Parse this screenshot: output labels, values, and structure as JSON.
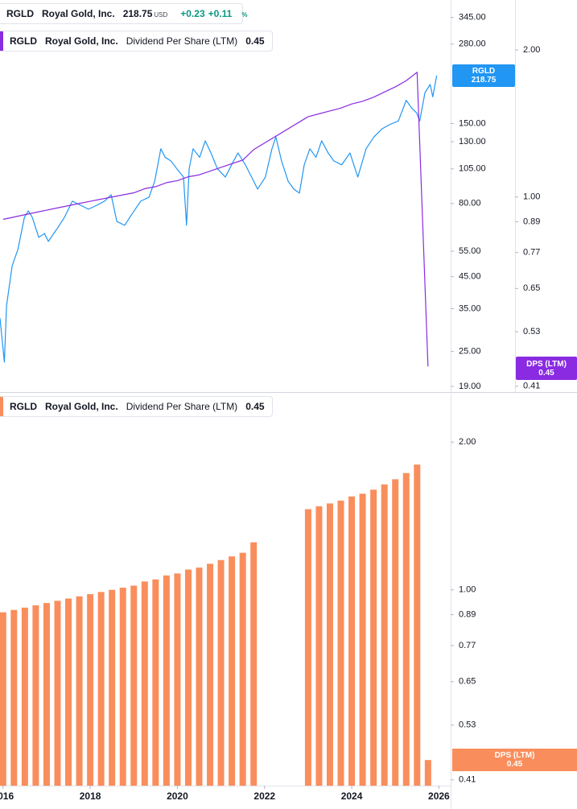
{
  "chart_data": [
    {
      "type": "line",
      "legend": {
        "ticker": "RGLD",
        "company": "Royal Gold, Inc.",
        "currency": "USD",
        "change": "+0.23",
        "change_pct": "+0.11",
        "pct_unit": "%",
        "dps_label": "Dividend Per Share (LTM)"
      },
      "log_scale": true,
      "xlim": [
        2015.93,
        2026.27
      ],
      "ylim": [
        18.18,
        396
      ],
      "yticks": [
        {
          "value": 345,
          "label": "345.00"
        },
        {
          "value": 280,
          "label": "280.00"
        },
        {
          "value": 150,
          "label": "150.00"
        },
        {
          "value": 130,
          "label": "130.00"
        },
        {
          "value": 105,
          "label": "105.00"
        },
        {
          "value": 80,
          "label": "80.00"
        },
        {
          "value": 55,
          "label": "55.00"
        },
        {
          "value": 45,
          "label": "45.00"
        },
        {
          "value": 35,
          "label": "35.00"
        },
        {
          "value": 25,
          "label": "25.00"
        },
        {
          "value": 19,
          "label": "19.00"
        }
      ],
      "y2lim": [
        0.399,
        2.53
      ],
      "y2ticks": [
        {
          "value": 2,
          "label": "2.00"
        },
        {
          "value": 1,
          "label": "1.00"
        },
        0.89,
        0.77,
        0.65,
        0.53,
        0.41
      ],
      "series": [
        {
          "name": "RGLD",
          "color": "#2196f3",
          "axis": "y",
          "x": [
            2015.93,
            2016.03,
            2016.08,
            2016.21,
            2016.34,
            2016.49,
            2016.58,
            2016.67,
            2016.82,
            2016.95,
            2017.04,
            2017.23,
            2017.41,
            2017.59,
            2017.78,
            2017.96,
            2018.15,
            2018.33,
            2018.48,
            2018.61,
            2018.79,
            2018.97,
            2019.16,
            2019.35,
            2019.48,
            2019.62,
            2019.72,
            2019.85,
            2019.99,
            2020.14,
            2020.21,
            2020.27,
            2020.36,
            2020.51,
            2020.64,
            2020.77,
            2020.92,
            2021.1,
            2021.29,
            2021.39,
            2021.56,
            2021.75,
            2021.84,
            2022.02,
            2022.17,
            2022.26,
            2022.39,
            2022.54,
            2022.67,
            2022.8,
            2022.91,
            2023.04,
            2023.18,
            2023.31,
            2023.46,
            2023.59,
            2023.77,
            2023.96,
            2024.14,
            2024.33,
            2024.51,
            2024.7,
            2024.88,
            2025.07,
            2025.25,
            2025.38,
            2025.49,
            2025.56,
            2025.68,
            2025.8,
            2025.86,
            2025.95
          ],
          "values": [
            32.5,
            23.0,
            35.8,
            49.1,
            55.7,
            71.8,
            75.5,
            71.8,
            61.3,
            63.2,
            59.4,
            65.3,
            71.8,
            81.5,
            78.9,
            76.5,
            78.9,
            81.5,
            85.7,
            69.5,
            67.4,
            74.1,
            81.5,
            84.1,
            95.4,
            123,
            115,
            111.8,
            105,
            98.5,
            67.4,
            105,
            123,
            115,
            130.9,
            119,
            105,
            98.5,
            111.8,
            119,
            108.4,
            95.4,
            89.6,
            98.5,
            123,
            135,
            111.8,
            95.4,
            89.6,
            86.8,
            108.4,
            123,
            115,
            130.9,
            119,
            111.8,
            108.4,
            119,
            98.5,
            123,
            135,
            144,
            149,
            153,
            180,
            169,
            163,
            153,
            191,
            204,
            185,
            218.75
          ]
        },
        {
          "name": "DPS (LTM)",
          "color": "#8a2be2",
          "axis": "y2",
          "x": [
            2016.0,
            2016.25,
            2016.5,
            2016.75,
            2017.0,
            2017.25,
            2017.5,
            2017.75,
            2018.0,
            2018.25,
            2018.5,
            2018.75,
            2019.0,
            2019.25,
            2019.5,
            2019.75,
            2020.0,
            2020.25,
            2020.5,
            2020.75,
            2021.0,
            2021.25,
            2021.5,
            2021.75,
            2023.0,
            2023.25,
            2023.5,
            2023.75,
            2024.0,
            2024.25,
            2024.5,
            2024.75,
            2025.0,
            2025.25,
            2025.5,
            2025.75
          ],
          "values": [
            0.9,
            0.91,
            0.92,
            0.93,
            0.94,
            0.95,
            0.96,
            0.97,
            0.98,
            0.99,
            1.0,
            1.01,
            1.02,
            1.04,
            1.05,
            1.07,
            1.08,
            1.1,
            1.11,
            1.13,
            1.15,
            1.17,
            1.19,
            1.25,
            1.46,
            1.48,
            1.5,
            1.52,
            1.55,
            1.57,
            1.6,
            1.64,
            1.68,
            1.73,
            1.8,
            0.45
          ]
        }
      ]
    },
    {
      "type": "bar",
      "legend": {
        "ticker": "RGLD",
        "company": "Royal Gold, Inc.",
        "dps_label": "Dividend Per Share (LTM)"
      },
      "log_scale": true,
      "xlim": [
        2015.93,
        2026.27
      ],
      "xticks": [
        2016,
        2018,
        2020,
        2022,
        2024,
        2026
      ],
      "ylim": [
        0.399,
        2.53
      ],
      "yticks": [
        {
          "value": 2,
          "label": "2.00"
        },
        {
          "value": 1,
          "label": "1.00"
        },
        0.89,
        0.77,
        0.65,
        0.53,
        0.41
      ],
      "series": [
        {
          "name": "DPS (LTM)",
          "color": "#f98e5c",
          "x": [
            2016.0,
            2016.25,
            2016.5,
            2016.75,
            2017.0,
            2017.25,
            2017.5,
            2017.75,
            2018.0,
            2018.25,
            2018.5,
            2018.75,
            2019.0,
            2019.25,
            2019.5,
            2019.75,
            2020.0,
            2020.25,
            2020.5,
            2020.75,
            2021.0,
            2021.25,
            2021.5,
            2021.75,
            2023.0,
            2023.25,
            2023.5,
            2023.75,
            2024.0,
            2024.25,
            2024.5,
            2024.75,
            2025.0,
            2025.25,
            2025.5,
            2025.75
          ],
          "values": [
            0.9,
            0.91,
            0.92,
            0.93,
            0.94,
            0.95,
            0.96,
            0.97,
            0.98,
            0.99,
            1.0,
            1.01,
            1.02,
            1.04,
            1.05,
            1.07,
            1.08,
            1.1,
            1.11,
            1.13,
            1.15,
            1.17,
            1.19,
            1.25,
            1.46,
            1.48,
            1.5,
            1.52,
            1.55,
            1.57,
            1.6,
            1.64,
            1.68,
            1.73,
            1.8,
            0.45
          ]
        }
      ]
    }
  ]
}
